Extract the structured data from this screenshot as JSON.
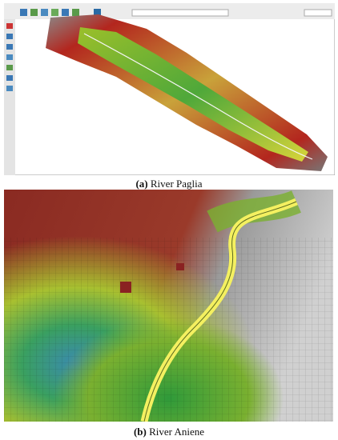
{
  "figure": {
    "panels": [
      {
        "label": "(a)",
        "caption": "River Paglia"
      },
      {
        "label": "(b)",
        "caption": "River Aniene"
      }
    ]
  }
}
